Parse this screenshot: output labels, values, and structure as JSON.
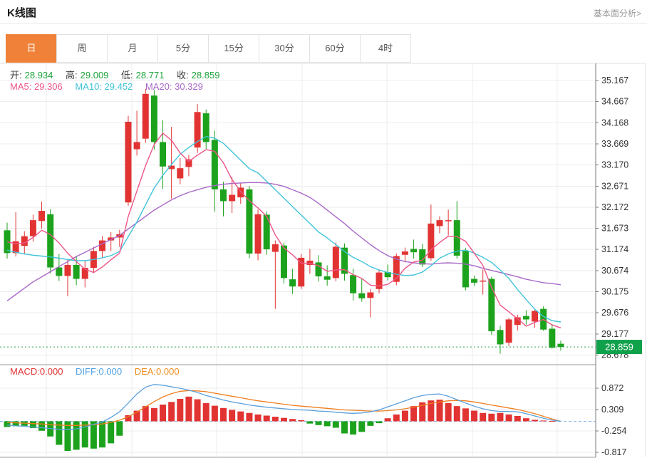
{
  "header": {
    "title": "K线图",
    "link": "基本面分析>"
  },
  "tabs": {
    "items": [
      "日",
      "周",
      "月",
      "5分",
      "15分",
      "30分",
      "60分",
      "4时"
    ],
    "active_index": 0
  },
  "ohlc": {
    "open_label": "开:",
    "open": "28.934",
    "high_label": "高:",
    "high": "29.009",
    "low_label": "低:",
    "low": "28.771",
    "close_label": "收:",
    "close": "28.859"
  },
  "ma_legend": {
    "ma5": "MA5: 29.306",
    "ma10": "MA10: 29.452",
    "ma20": "MA20: 30.329"
  },
  "macd_legend": {
    "macd": "MACD:0.000",
    "diff": "DIFF:0.000",
    "dea": "DEA:0.000"
  },
  "colors": {
    "up": "#e23333",
    "down": "#1ca21c",
    "ma5": "#ee5588",
    "ma10": "#3fc3d8",
    "ma20": "#a968c8",
    "diff": "#5aa0dc",
    "dea": "#ee7e20",
    "price_line": "#2aa54e",
    "badge_bg": "#10a14b",
    "badge_text": "#ffffff",
    "tab_active_bg": "#f08138",
    "ohlc_value": "#1ea43c",
    "macd_label": "#e23333",
    "diff_label": "#4f9ee0",
    "dea_label": "#f08c1f",
    "grid": "#ececec",
    "axis": "#7a7a7a",
    "axis_text": "#333333",
    "zero_dash": "#8ab9e8"
  },
  "chart_data": {
    "type": "candlestick+macd",
    "title": "K线图 (daily K-line with MA5/MA10/MA20 overlays and MACD sub-panel)",
    "legend_position": "top-left",
    "grid": true,
    "main": {
      "y_axis_labels": [
        35.167,
        34.667,
        34.168,
        33.669,
        33.17,
        32.671,
        32.172,
        31.673,
        31.174,
        30.674,
        30.175,
        29.676,
        29.177,
        28.678
      ],
      "ylim": [
        28.45,
        35.45
      ],
      "current_price": 28.859,
      "last_candle": {
        "open": 28.934,
        "high": 29.009,
        "low": 28.771,
        "close": 28.859
      },
      "candles_ohlc": [
        [
          31.62,
          31.8,
          30.95,
          31.08
        ],
        [
          31.08,
          32.05,
          31.0,
          31.36
        ],
        [
          31.25,
          31.6,
          31.06,
          31.48
        ],
        [
          31.48,
          31.99,
          31.35,
          31.86
        ],
        [
          31.84,
          32.3,
          31.66,
          32.08
        ],
        [
          32.0,
          32.12,
          30.6,
          30.74
        ],
        [
          30.74,
          31.06,
          30.42,
          30.54
        ],
        [
          30.54,
          30.92,
          30.06,
          30.8
        ],
        [
          30.8,
          31.02,
          30.32,
          30.47
        ],
        [
          30.47,
          30.89,
          30.27,
          30.73
        ],
        [
          30.73,
          31.23,
          30.63,
          31.13
        ],
        [
          31.13,
          31.48,
          30.98,
          31.38
        ],
        [
          31.38,
          31.58,
          31.13,
          31.45
        ],
        [
          31.45,
          31.63,
          31.23,
          31.53
        ],
        [
          32.28,
          34.33,
          32.2,
          34.19
        ],
        [
          33.54,
          34.45,
          33.39,
          33.71
        ],
        [
          33.79,
          34.97,
          33.69,
          34.85
        ],
        [
          34.81,
          34.94,
          33.53,
          33.71
        ],
        [
          33.71,
          34.23,
          32.6,
          33.13
        ],
        [
          33.07,
          34.07,
          32.37,
          33.15
        ],
        [
          32.85,
          33.33,
          32.71,
          33.09
        ],
        [
          33.12,
          33.4,
          32.9,
          33.3
        ],
        [
          33.58,
          34.61,
          33.45,
          34.42
        ],
        [
          34.39,
          34.48,
          33.55,
          33.71
        ],
        [
          33.76,
          33.98,
          32.06,
          32.59
        ],
        [
          32.59,
          32.77,
          31.95,
          32.31
        ],
        [
          32.31,
          32.88,
          32.03,
          32.46
        ],
        [
          32.4,
          32.73,
          32.25,
          32.63
        ],
        [
          32.59,
          32.67,
          30.96,
          31.07
        ],
        [
          31.07,
          32.11,
          30.91,
          32.0
        ],
        [
          31.99,
          32.07,
          31.04,
          31.17
        ],
        [
          31.11,
          31.38,
          29.76,
          31.29
        ],
        [
          31.26,
          31.33,
          30.36,
          30.49
        ],
        [
          30.46,
          30.71,
          30.11,
          30.29
        ],
        [
          30.29,
          31.06,
          30.23,
          30.97
        ],
        [
          30.8,
          31.18,
          30.59,
          30.9
        ],
        [
          30.86,
          31.03,
          30.41,
          30.53
        ],
        [
          30.53,
          30.79,
          30.31,
          30.45
        ],
        [
          30.49,
          31.33,
          30.41,
          31.23
        ],
        [
          31.21,
          31.31,
          30.43,
          30.59
        ],
        [
          30.56,
          30.71,
          29.96,
          30.13
        ],
        [
          30.13,
          30.49,
          29.93,
          30.01
        ],
        [
          30.02,
          30.23,
          29.56,
          30.15
        ],
        [
          30.23,
          30.69,
          30.13,
          30.62
        ],
        [
          30.63,
          30.81,
          30.43,
          30.51
        ],
        [
          30.4,
          31.07,
          30.32,
          31.01
        ],
        [
          31.04,
          31.21,
          30.86,
          31.12
        ],
        [
          31.18,
          31.4,
          30.95,
          31.1
        ],
        [
          31.17,
          31.3,
          30.75,
          30.81
        ],
        [
          30.96,
          32.23,
          30.9,
          31.78
        ],
        [
          31.72,
          31.95,
          31.55,
          31.86
        ],
        [
          31.85,
          32.11,
          31.5,
          31.86
        ],
        [
          31.86,
          32.31,
          30.95,
          31.02
        ],
        [
          31.13,
          31.2,
          30.2,
          30.27
        ],
        [
          30.47,
          30.55,
          30.3,
          30.38
        ],
        [
          30.42,
          30.69,
          30.1,
          30.43
        ],
        [
          30.47,
          30.52,
          29.15,
          29.23
        ],
        [
          29.26,
          29.36,
          28.7,
          28.92
        ],
        [
          28.96,
          29.55,
          28.88,
          29.51
        ],
        [
          29.38,
          29.62,
          29.25,
          29.56
        ],
        [
          29.59,
          29.73,
          29.39,
          29.51
        ],
        [
          29.46,
          29.76,
          29.31,
          29.71
        ],
        [
          29.76,
          29.82,
          29.24,
          29.27
        ],
        [
          29.29,
          29.4,
          28.82,
          28.84
        ],
        [
          28.934,
          29.009,
          28.771,
          28.859
        ]
      ],
      "series": [
        {
          "name": "MA5",
          "current": 29.306,
          "values": [
            31.35,
            31.3,
            31.32,
            31.45,
            31.62,
            31.52,
            31.32,
            31.08,
            30.88,
            30.7,
            30.62,
            30.75,
            30.92,
            31.08,
            31.95,
            32.55,
            33.15,
            33.65,
            33.92,
            33.75,
            33.45,
            33.25,
            33.4,
            33.53,
            33.49,
            33.22,
            32.82,
            32.54,
            32.32,
            32.15,
            31.95,
            31.51,
            31.2,
            31.04,
            30.84,
            30.84,
            30.78,
            30.65,
            30.68,
            30.69,
            30.57,
            30.48,
            30.32,
            30.3,
            30.34,
            30.48,
            30.72,
            30.87,
            30.91,
            31.16,
            31.33,
            31.48,
            31.47,
            31.36,
            31.08,
            30.79,
            30.27,
            29.85,
            29.69,
            29.53,
            29.35,
            29.44,
            29.51,
            29.38,
            29.31
          ]
        },
        {
          "name": "MA10",
          "current": 29.452,
          "values": [
            31.15,
            31.1,
            31.06,
            31.03,
            31.01,
            30.99,
            30.96,
            30.93,
            30.9,
            30.9,
            30.93,
            30.97,
            31.02,
            31.12,
            31.47,
            31.82,
            32.22,
            32.62,
            32.92,
            33.18,
            33.42,
            33.58,
            33.72,
            33.84,
            33.8,
            33.68,
            33.48,
            33.28,
            33.08,
            32.98,
            32.78,
            32.58,
            32.38,
            32.18,
            31.98,
            31.78,
            31.58,
            31.44,
            31.28,
            31.12,
            30.98,
            30.88,
            30.76,
            30.68,
            30.62,
            30.58,
            30.55,
            30.56,
            30.63,
            30.78,
            30.96,
            31.06,
            31.13,
            31.15,
            31.08,
            30.98,
            30.86,
            30.68,
            30.48,
            30.22,
            29.98,
            29.75,
            29.58,
            29.48,
            29.45
          ]
        },
        {
          "name": "MA20",
          "current": 30.329,
          "values": [
            29.95,
            30.1,
            30.25,
            30.4,
            30.52,
            30.64,
            30.76,
            30.88,
            31.0,
            31.1,
            31.2,
            31.3,
            31.4,
            31.5,
            31.65,
            31.8,
            31.95,
            32.1,
            32.22,
            32.34,
            32.44,
            32.52,
            32.58,
            32.64,
            32.68,
            32.71,
            32.73,
            32.74,
            32.75,
            32.75,
            32.74,
            32.71,
            32.66,
            32.58,
            32.5,
            32.4,
            32.26,
            32.1,
            31.94,
            31.78,
            31.6,
            31.44,
            31.28,
            31.14,
            31.02,
            30.94,
            30.88,
            30.85,
            30.83,
            30.82,
            30.84,
            30.85,
            30.84,
            30.82,
            30.78,
            30.72,
            30.67,
            30.62,
            30.57,
            30.52,
            30.46,
            30.42,
            30.38,
            30.36,
            30.33
          ]
        }
      ]
    },
    "macd": {
      "y_axis_labels": [
        0.872,
        0.309,
        -0.254,
        -0.817
      ],
      "ylim": [
        -1.1,
        1.17
      ],
      "current": {
        "macd": 0.0,
        "diff": 0.0,
        "dea": 0.0
      },
      "histogram": [
        -0.15,
        -0.13,
        -0.12,
        -0.18,
        -0.25,
        -0.4,
        -0.62,
        -0.78,
        -0.75,
        -0.69,
        -0.72,
        -0.69,
        -0.58,
        -0.38,
        0.16,
        0.28,
        0.4,
        0.35,
        0.44,
        0.51,
        0.59,
        0.65,
        0.58,
        0.48,
        0.41,
        0.35,
        0.3,
        0.26,
        0.22,
        0.18,
        0.15,
        0.12,
        0.09,
        0.06,
        0.03,
        -0.06,
        -0.1,
        -0.13,
        -0.17,
        -0.32,
        -0.35,
        -0.28,
        -0.12,
        -0.05,
        0.08,
        0.18,
        0.28,
        0.4,
        0.5,
        0.55,
        0.57,
        0.48,
        0.4,
        0.34,
        0.28,
        0.22,
        0.2,
        0.22,
        0.18,
        0.14,
        0.08,
        0.04,
        0.02,
        0.01,
        0.0
      ],
      "diff": [
        -0.1,
        -0.12,
        -0.13,
        -0.15,
        -0.17,
        -0.19,
        -0.21,
        -0.22,
        -0.2,
        -0.15,
        -0.08,
        -0.02,
        0.1,
        0.25,
        0.48,
        0.72,
        0.9,
        0.97,
        0.95,
        0.91,
        0.87,
        0.82,
        0.76,
        0.68,
        0.62,
        0.56,
        0.51,
        0.47,
        0.43,
        0.4,
        0.37,
        0.35,
        0.33,
        0.31,
        0.3,
        0.29,
        0.27,
        0.26,
        0.24,
        0.22,
        0.21,
        0.22,
        0.25,
        0.3,
        0.38,
        0.46,
        0.54,
        0.62,
        0.68,
        0.71,
        0.72,
        0.66,
        0.57,
        0.48,
        0.4,
        0.33,
        0.28,
        0.26,
        0.26,
        0.25,
        0.2,
        0.14,
        0.08,
        0.03,
        0.0
      ],
      "dea": [
        -0.03,
        -0.04,
        -0.05,
        -0.06,
        -0.07,
        -0.09,
        -0.1,
        -0.11,
        -0.11,
        -0.1,
        -0.09,
        -0.07,
        -0.03,
        0.03,
        0.12,
        0.24,
        0.38,
        0.52,
        0.64,
        0.73,
        0.79,
        0.81,
        0.8,
        0.78,
        0.74,
        0.7,
        0.66,
        0.62,
        0.58,
        0.54,
        0.51,
        0.48,
        0.45,
        0.42,
        0.4,
        0.38,
        0.36,
        0.34,
        0.32,
        0.3,
        0.29,
        0.28,
        0.27,
        0.27,
        0.28,
        0.3,
        0.33,
        0.37,
        0.42,
        0.47,
        0.51,
        0.54,
        0.55,
        0.54,
        0.51,
        0.47,
        0.43,
        0.39,
        0.35,
        0.31,
        0.26,
        0.2,
        0.13,
        0.06,
        0.0
      ]
    }
  }
}
